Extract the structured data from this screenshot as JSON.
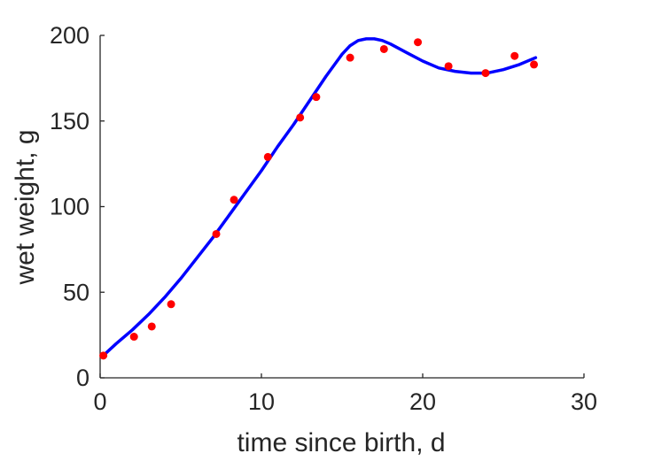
{
  "chart_data": {
    "type": "scatter",
    "title": "",
    "xlabel": "time since birth, d",
    "ylabel": "wet weight, g",
    "xlim": [
      0,
      30
    ],
    "ylim": [
      0,
      200
    ],
    "xticks": [
      0,
      10,
      20,
      30
    ],
    "yticks": [
      0,
      50,
      100,
      150,
      200
    ],
    "grid": false,
    "legend": "none",
    "series": [
      {
        "kind": "points",
        "color": "#ff0000",
        "x": [
          0.2,
          2.1,
          3.2,
          4.4,
          7.2,
          8.3,
          10.4,
          12.4,
          13.4,
          15.5,
          17.6,
          19.7,
          21.6,
          23.9,
          25.7,
          26.9
        ],
        "y": [
          13,
          24,
          30,
          43,
          84,
          104,
          129,
          152,
          164,
          187,
          192,
          196,
          182,
          178,
          188,
          183
        ]
      },
      {
        "kind": "line",
        "color": "#0000ff",
        "x": [
          0.2,
          1,
          2,
          3,
          4,
          5,
          6,
          7,
          8,
          9,
          10,
          11,
          12,
          13,
          14,
          15,
          15.5,
          16,
          16.5,
          17,
          17.5,
          18,
          19,
          20,
          21,
          22,
          23,
          24,
          25,
          26,
          27
        ],
        "y": [
          13,
          20,
          28,
          37,
          47,
          58,
          70,
          82,
          95,
          108,
          121,
          135,
          148,
          162,
          176,
          189,
          194,
          197,
          198,
          198,
          197,
          195,
          190,
          185,
          181,
          179,
          178,
          178,
          180,
          183,
          187
        ]
      }
    ]
  }
}
